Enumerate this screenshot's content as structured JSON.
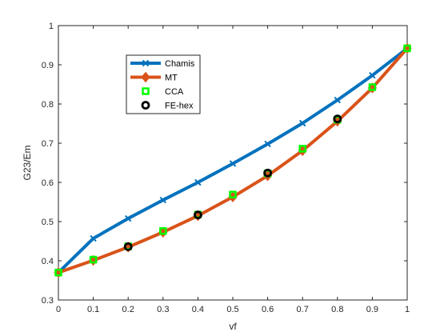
{
  "chart_data": {
    "type": "line",
    "xlabel": "vf",
    "ylabel": "G23/Em",
    "xlim": [
      0,
      1
    ],
    "ylim": [
      0.3,
      1
    ],
    "x_ticks": [
      "0",
      "0.1",
      "0.2",
      "0.3",
      "0.4",
      "0.5",
      "0.6",
      "0.7",
      "0.8",
      "0.9",
      "1"
    ],
    "y_ticks": [
      "0.3",
      "0.4",
      "0.5",
      "0.6",
      "0.7",
      "0.8",
      "0.9",
      "1"
    ],
    "grid": false,
    "legend_position": "top-left",
    "series": [
      {
        "name": "Chamis",
        "color": "#0072BD",
        "marker": "x",
        "x": [
          0,
          0.1,
          0.2,
          0.3,
          0.4,
          0.5,
          0.6,
          0.7,
          0.8,
          0.9,
          1
        ],
        "y": [
          0.37,
          0.457,
          0.508,
          0.555,
          0.6,
          0.648,
          0.698,
          0.751,
          0.81,
          0.873,
          0.942
        ]
      },
      {
        "name": "MT",
        "color": "#D95319",
        "marker": "diamond",
        "x": [
          0,
          0.1,
          0.2,
          0.3,
          0.4,
          0.5,
          0.6,
          0.7,
          0.8,
          0.9,
          1
        ],
        "y": [
          0.37,
          0.401,
          0.435,
          0.473,
          0.515,
          0.563,
          0.617,
          0.681,
          0.756,
          0.841,
          0.942
        ]
      },
      {
        "name": "CCA",
        "color": "#00FF00",
        "marker": "square",
        "x": [
          0,
          0.1,
          0.2,
          0.3,
          0.4,
          0.5,
          0.6,
          0.7,
          0.8,
          0.9,
          1
        ],
        "y": [
          0.37,
          0.403,
          0.437,
          0.476,
          0.518,
          0.569,
          0.623,
          0.686,
          0.76,
          0.843,
          0.942
        ]
      },
      {
        "name": "FE-hex",
        "color": "#000000",
        "marker": "circle",
        "x": [
          0.2,
          0.4,
          0.6,
          0.8
        ],
        "y": [
          0.436,
          0.517,
          0.624,
          0.762
        ]
      }
    ]
  }
}
